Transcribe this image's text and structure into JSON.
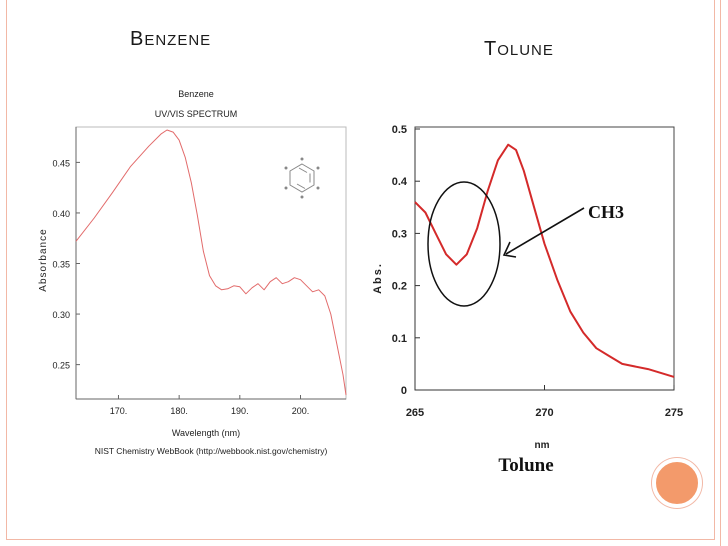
{
  "slide": {
    "left_title": {
      "first": "B",
      "rest": "enzene"
    },
    "right_title": {
      "first": "T",
      "rest": "olune"
    },
    "accent_color": "#f39a6b",
    "border_color": "#f2b8a6"
  },
  "chart_data": [
    {
      "type": "line",
      "title": "Benzene",
      "subtitle": "UV/VIS SPECTRUM",
      "xlabel": "Wavelength (nm)",
      "ylabel": "Absorbance",
      "source": "NIST Chemistry WebBook (http://webbook.nist.gov/chemistry)",
      "xlim": [
        163,
        207.5
      ],
      "ylim": [
        0.216,
        0.485
      ],
      "xticks": [
        170,
        180,
        190,
        200
      ],
      "xtick_labels": [
        "170.",
        "180.",
        "190.",
        "200."
      ],
      "yticks": [
        0.25,
        0.3,
        0.35,
        0.4,
        0.45
      ],
      "ytick_labels": [
        "0.25",
        "0.30",
        "0.35",
        "0.40",
        "0.45"
      ],
      "grid": false,
      "line_color": "#e26b6b",
      "series": [
        {
          "x": [
            163,
            166,
            169,
            172,
            175,
            177,
            178,
            179,
            180,
            181,
            182,
            183,
            184,
            185,
            186,
            187,
            188,
            189,
            190,
            191,
            192,
            193,
            194,
            195,
            196,
            197,
            198,
            199,
            200,
            201,
            202,
            203,
            204,
            205,
            206,
            207,
            207.5
          ],
          "y": [
            0.372,
            0.395,
            0.42,
            0.446,
            0.466,
            0.478,
            0.482,
            0.48,
            0.472,
            0.455,
            0.43,
            0.398,
            0.362,
            0.338,
            0.328,
            0.324,
            0.325,
            0.328,
            0.327,
            0.32,
            0.326,
            0.33,
            0.324,
            0.332,
            0.336,
            0.33,
            0.332,
            0.336,
            0.334,
            0.328,
            0.322,
            0.324,
            0.318,
            0.3,
            0.27,
            0.24,
            0.22
          ]
        }
      ],
      "inset": "benzene ring structure"
    },
    {
      "type": "line",
      "title": "Tolune",
      "xlabel": "nm",
      "ylabel": "Abs.",
      "xlim": [
        265,
        275
      ],
      "ylim": [
        0,
        0.5
      ],
      "xticks": [
        265,
        270,
        275
      ],
      "xtick_labels": [
        "265",
        "270",
        "275"
      ],
      "yticks": [
        0,
        0.1,
        0.2,
        0.3,
        0.4,
        0.5
      ],
      "ytick_labels": [
        "0",
        "0.1",
        "0.2",
        "0.3",
        "0.4",
        "0.5"
      ],
      "grid": false,
      "line_color": "#d42a2a",
      "annotation": "CH3",
      "series": [
        {
          "x": [
            265,
            265.4,
            265.8,
            266.2,
            266.6,
            267.0,
            267.4,
            267.8,
            268.2,
            268.6,
            268.9,
            269.2,
            269.6,
            270.0,
            270.5,
            271.0,
            271.5,
            272.0,
            272.5,
            273.0,
            274.0,
            275.0
          ],
          "y": [
            0.36,
            0.34,
            0.3,
            0.26,
            0.24,
            0.26,
            0.31,
            0.38,
            0.44,
            0.47,
            0.46,
            0.42,
            0.35,
            0.28,
            0.21,
            0.15,
            0.11,
            0.08,
            0.065,
            0.05,
            0.04,
            0.025
          ]
        }
      ]
    }
  ]
}
